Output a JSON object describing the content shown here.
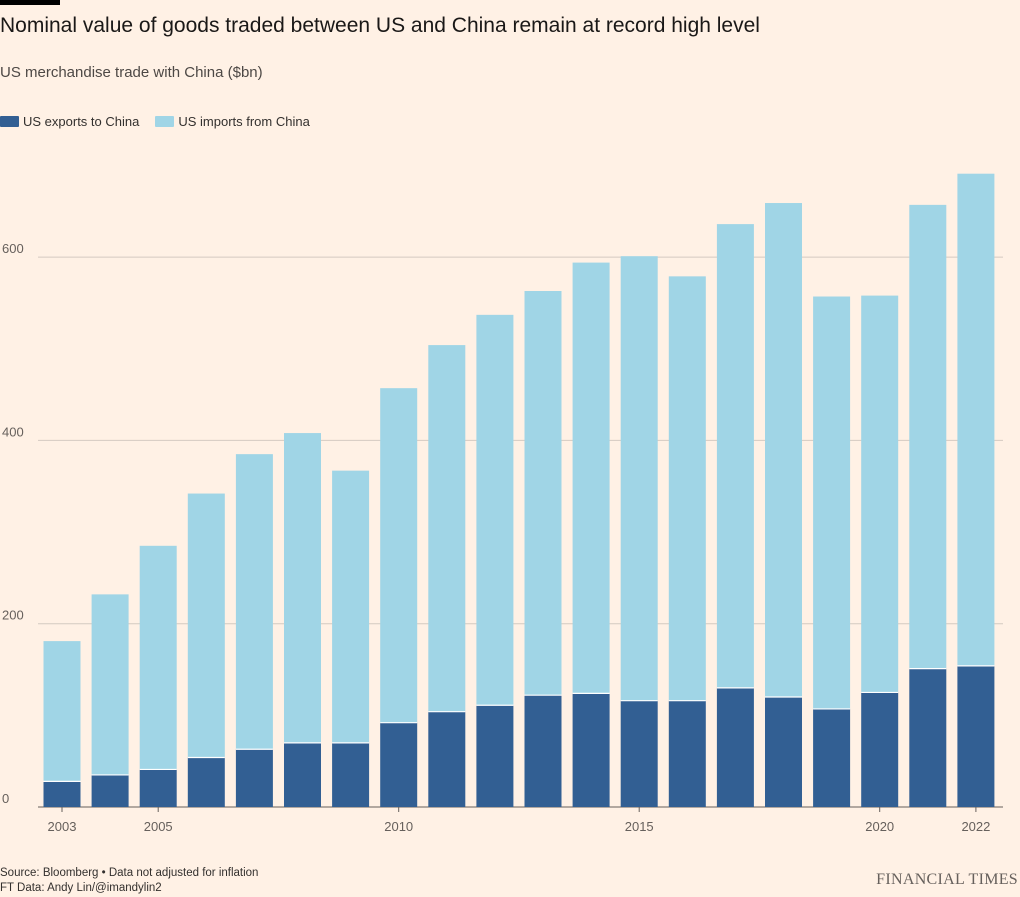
{
  "header": {
    "title": "Nominal value of goods traded between US and China remain at record high level",
    "subtitle": "US merchandise trade with China ($bn)"
  },
  "legend": {
    "exports_label": "US exports to China",
    "imports_label": "US imports from China"
  },
  "footer": {
    "source": "Source: Bloomberg • Data not adjusted for inflation",
    "credit": "FT Data: Andy Lin/@imandylin2",
    "brand": "FINANCIAL TIMES"
  },
  "colors": {
    "background": "#fff1e5",
    "exports": "#325f93",
    "imports": "#a0d5e6",
    "gridline": "#d4cac1",
    "axis_text": "#66605c"
  },
  "chart_data": {
    "type": "bar",
    "stacked": true,
    "categories": [
      "2003",
      "2004",
      "2005",
      "2006",
      "2007",
      "2008",
      "2009",
      "2010",
      "2011",
      "2012",
      "2013",
      "2014",
      "2015",
      "2016",
      "2017",
      "2018",
      "2019",
      "2020",
      "2021",
      "2022"
    ],
    "x_tick_labels": [
      "2003",
      "2005",
      "2010",
      "2015",
      "2020",
      "2022"
    ],
    "series": [
      {
        "name": "US exports to China",
        "values": [
          28,
          35,
          41,
          54,
          63,
          70,
          70,
          92,
          104,
          111,
          122,
          124,
          116,
          116,
          130,
          120,
          107,
          125,
          151,
          154
        ]
      },
      {
        "name": "US imports from China",
        "values": [
          153,
          197,
          244,
          288,
          322,
          338,
          297,
          365,
          400,
          426,
          441,
          470,
          485,
          463,
          506,
          539,
          450,
          433,
          506,
          537
        ]
      }
    ],
    "xlabel": "",
    "ylabel": "",
    "ylim": [
      0,
      700
    ],
    "yticks": [
      0,
      200,
      400,
      600
    ],
    "grid": "horizontal",
    "legend_position": "top-left"
  }
}
